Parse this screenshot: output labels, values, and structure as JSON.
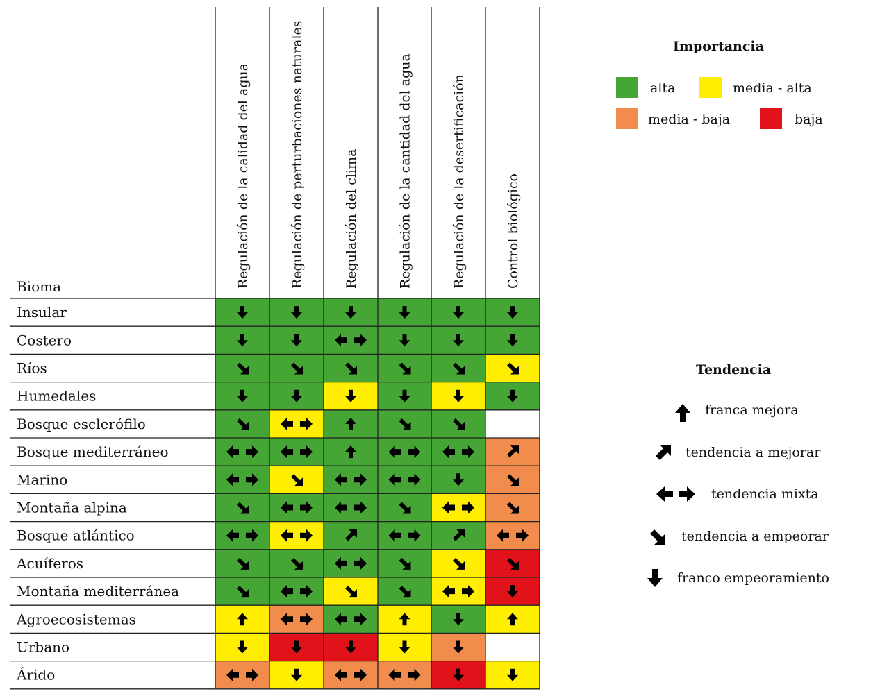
{
  "colors": {
    "alta": "#45a535",
    "media_alta": "#ffee00",
    "media_baja": "#f28c4c",
    "baja": "#e2121b",
    "empty": "#ffffff"
  },
  "chart_data": {
    "type": "heatmap",
    "row_header": "Bioma",
    "columns": [
      "Regulación de la calidad del agua",
      "Regulación de perturbaciones naturales",
      "Regulación del clima",
      "Regulación de la cantidad del agua",
      "Regulación de la desertificación",
      "Control biológico"
    ],
    "rows": [
      {
        "bioma": "Insular",
        "importance": [
          "alta",
          "alta",
          "alta",
          "alta",
          "alta",
          "alta"
        ],
        "trend": [
          "down",
          "down",
          "down",
          "down",
          "down",
          "down"
        ]
      },
      {
        "bioma": "Costero",
        "importance": [
          "alta",
          "alta",
          "alta",
          "alta",
          "alta",
          "alta"
        ],
        "trend": [
          "down",
          "down",
          "mixed",
          "down",
          "down",
          "down"
        ]
      },
      {
        "bioma": "Ríos",
        "importance": [
          "alta",
          "alta",
          "alta",
          "alta",
          "alta",
          "media_alta"
        ],
        "trend": [
          "down-right",
          "down-right",
          "down-right",
          "down-right",
          "down-right",
          "down-right"
        ]
      },
      {
        "bioma": "Humedales",
        "importance": [
          "alta",
          "alta",
          "media_alta",
          "alta",
          "media_alta",
          "alta"
        ],
        "trend": [
          "down",
          "down",
          "down",
          "down",
          "down",
          "down"
        ]
      },
      {
        "bioma": "Bosque esclerófilo",
        "importance": [
          "alta",
          "media_alta",
          "alta",
          "alta",
          "alta",
          null
        ],
        "trend": [
          "down-right",
          "mixed",
          "up",
          "down-right",
          "down-right",
          null
        ]
      },
      {
        "bioma": "Bosque mediterráneo",
        "importance": [
          "alta",
          "alta",
          "alta",
          "alta",
          "alta",
          "media_baja"
        ],
        "trend": [
          "mixed",
          "mixed",
          "up",
          "mixed",
          "mixed",
          "up-right"
        ]
      },
      {
        "bioma": "Marino",
        "importance": [
          "alta",
          "media_alta",
          "alta",
          "alta",
          "alta",
          "media_baja"
        ],
        "trend": [
          "mixed",
          "down-right",
          "mixed",
          "mixed",
          "down",
          "down-right"
        ]
      },
      {
        "bioma": "Montaña alpina",
        "importance": [
          "alta",
          "alta",
          "alta",
          "alta",
          "media_alta",
          "media_baja"
        ],
        "trend": [
          "down-right",
          "mixed",
          "mixed",
          "down-right",
          "mixed",
          "down-right"
        ]
      },
      {
        "bioma": "Bosque atlántico",
        "importance": [
          "alta",
          "media_alta",
          "alta",
          "alta",
          "alta",
          "media_baja"
        ],
        "trend": [
          "mixed",
          "mixed",
          "up-right",
          "mixed",
          "up-right",
          "mixed"
        ]
      },
      {
        "bioma": "Acuíferos",
        "importance": [
          "alta",
          "alta",
          "alta",
          "alta",
          "media_alta",
          "baja"
        ],
        "trend": [
          "down-right",
          "down-right",
          "mixed",
          "down-right",
          "down-right",
          "down-right"
        ]
      },
      {
        "bioma": "Montaña mediterránea",
        "importance": [
          "alta",
          "alta",
          "media_alta",
          "alta",
          "media_alta",
          "baja"
        ],
        "trend": [
          "down-right",
          "mixed",
          "down-right",
          "down-right",
          "mixed",
          "down"
        ]
      },
      {
        "bioma": "Agroecosistemas",
        "importance": [
          "media_alta",
          "media_baja",
          "alta",
          "media_alta",
          "alta",
          "media_alta"
        ],
        "trend": [
          "up",
          "mixed",
          "mixed",
          "up",
          "down",
          "up"
        ]
      },
      {
        "bioma": "Urbano",
        "importance": [
          "media_alta",
          "baja",
          "baja",
          "media_alta",
          "media_baja",
          null
        ],
        "trend": [
          "down",
          "down",
          "down",
          "down",
          "down",
          null
        ]
      },
      {
        "bioma": "Árido",
        "importance": [
          "media_baja",
          "media_alta",
          "media_baja",
          "media_baja",
          "baja",
          "media_alta"
        ],
        "trend": [
          "mixed",
          "down",
          "mixed",
          "mixed",
          "down",
          "down"
        ]
      }
    ]
  },
  "legend": {
    "importance_title": "Importancia",
    "importance_items": [
      {
        "key": "alta",
        "label": "alta"
      },
      {
        "key": "media_alta",
        "label": "media - alta"
      },
      {
        "key": "media_baja",
        "label": "media - baja"
      },
      {
        "key": "baja",
        "label": "baja"
      }
    ],
    "trend_title": "Tendencia",
    "trend_items": [
      {
        "icon": "up",
        "label": "franca mejora"
      },
      {
        "icon": "up-right",
        "label": "tendencia a mejorar"
      },
      {
        "icon": "mixed",
        "label": "tendencia mixta"
      },
      {
        "icon": "down-right",
        "label": "tendencia a empeorar"
      },
      {
        "icon": "down",
        "label": "franco empeoramiento"
      }
    ]
  }
}
